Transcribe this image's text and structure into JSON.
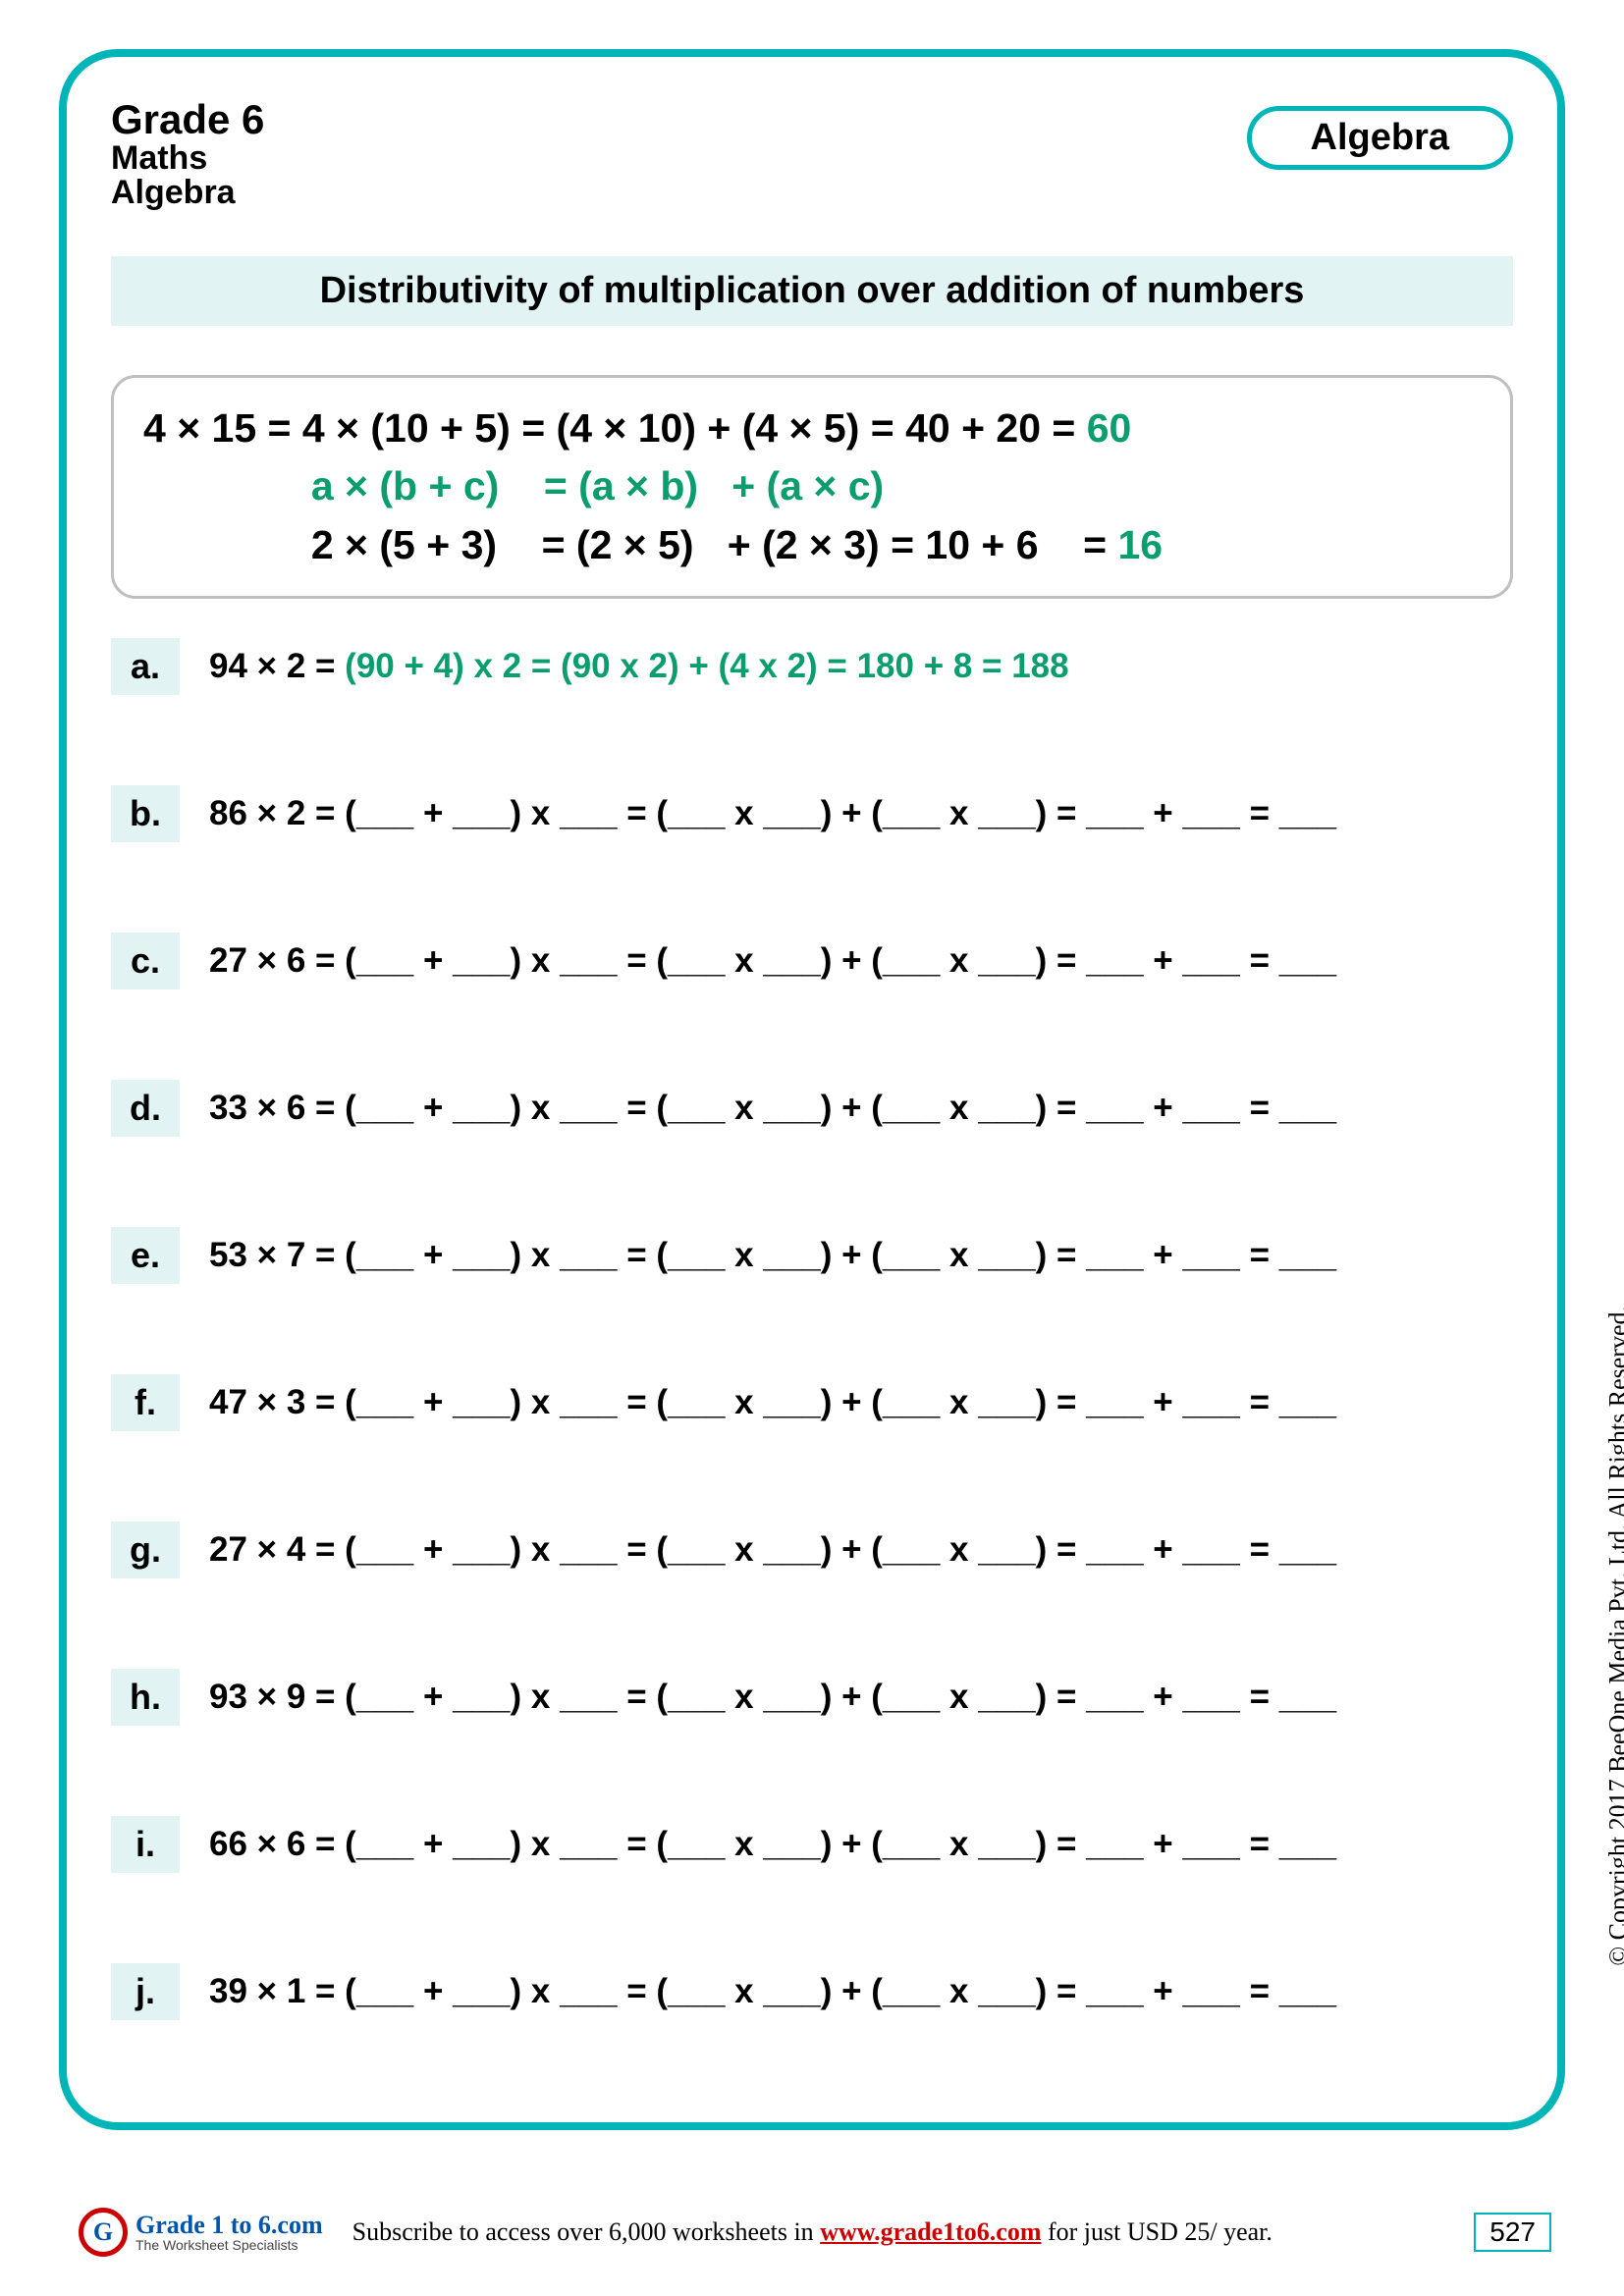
{
  "header": {
    "grade": "Grade 6",
    "subject": "Maths",
    "topic": "Algebra",
    "pill": "Algebra"
  },
  "title_band": "Distributivity of multiplication over addition of numbers",
  "example_box": {
    "line1_black": "4 × 15 = 4 × (10 + 5) = (4 × 10) + (4 × 5) = 40 + 20 = ",
    "line1_green": "60",
    "line2_green": "               a × (b + c)    = (a × b)   + (a × c)",
    "line3_black": "               2 × (5 + 3)    = (2 × 5)   + (2 × 3) = 10 + 6    = ",
    "line3_green": "16"
  },
  "problems": [
    {
      "label": "a.",
      "prefix": "94 × 2 = ",
      "greentext": "(90 + 4) x 2 = (90 x 2) + (4 x 2) = 180 + 8 = 188"
    },
    {
      "label": "b.",
      "prefix": "86 × 2 = (___ + ___) x ___ = (___ x ___) + (___ x ___) = ___ + ___ = ___",
      "greentext": ""
    },
    {
      "label": "c.",
      "prefix": "27 × 6 = (___ + ___) x ___ = (___ x ___) + (___ x ___) = ___ + ___ = ___",
      "greentext": ""
    },
    {
      "label": "d.",
      "prefix": "33 × 6 = (___ + ___) x ___ = (___ x ___) + (___ x ___) = ___ + ___ = ___",
      "greentext": ""
    },
    {
      "label": "e.",
      "prefix": "53 × 7 = (___ + ___) x ___ = (___ x ___) + (___ x ___) = ___ + ___ = ___",
      "greentext": ""
    },
    {
      "label": "f.",
      "prefix": "47 × 3 = (___ + ___) x ___ = (___ x ___) + (___ x ___) = ___ + ___ = ___",
      "greentext": ""
    },
    {
      "label": "g.",
      "prefix": "27 × 4 = (___ + ___) x ___ = (___ x ___) + (___ x ___) = ___ + ___ = ___",
      "greentext": ""
    },
    {
      "label": "h.",
      "prefix": "93 × 9 = (___ + ___) x ___ = (___ x ___) + (___ x ___) = ___ + ___ = ___",
      "greentext": ""
    },
    {
      "label": "i.",
      "prefix": "66 × 6 = (___ + ___) x ___ = (___ x ___) + (___ x ___) = ___ + ___ = ___",
      "greentext": ""
    },
    {
      "label": "j.",
      "prefix": "39 × 1 = (___ + ___) x ___ = (___ x ___) + (___ x ___) = ___ + ___ = ___",
      "greentext": ""
    }
  ],
  "copyright": "© Copyright 2017 BeeOne Media Pvt. Ltd. All Rights Reserved.",
  "footer": {
    "logo_title": "Grade 1 to 6.com",
    "logo_sub": "The Worksheet Specialists",
    "msg_pre": "Subscribe to access over 6,000 worksheets in ",
    "msg_link": "www.grade1to6.com",
    "msg_post": " for just USD 25/ year.",
    "page": "527"
  },
  "colors": {
    "border": "#00b5b8",
    "band_bg": "#e1f3f3",
    "green_text": "#0a9e6e",
    "example_border": "#bfbfbf",
    "link_red": "#c00",
    "logo_blue": "#0055aa"
  }
}
